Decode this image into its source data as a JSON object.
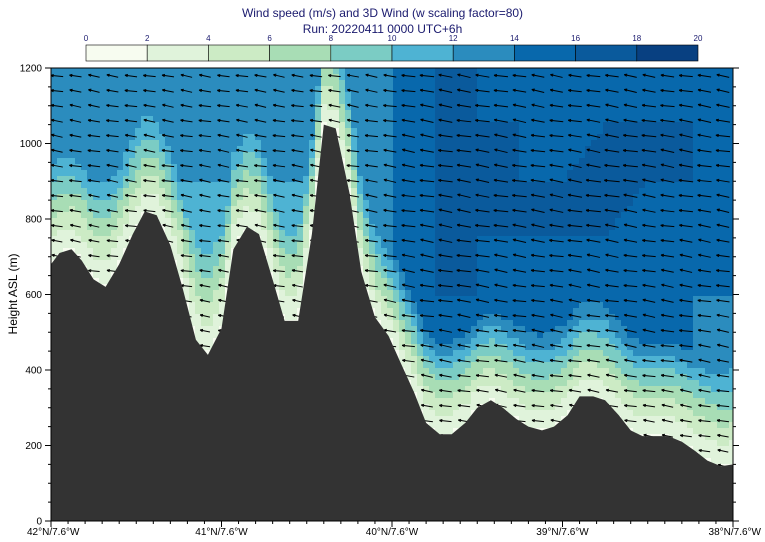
{
  "chart_data": {
    "type": "heatmap",
    "title": "Wind speed (m/s) and 3D Wind (w scaling factor=80)",
    "subtitle": "Run: 20220411 0000 UTC+6h",
    "ylabel": "Height ASL (m)",
    "xlabel": "",
    "ylim": [
      0,
      1200
    ],
    "y_ticks": [
      0,
      200,
      400,
      600,
      800,
      1000,
      1200
    ],
    "x_ticks": [
      "42°N/7.6°W",
      "41°N/7.6°W",
      "40°N/7.6°W",
      "39°N/7.6°W",
      "38°N/7.6°W"
    ],
    "colorbar": {
      "labels": [
        0,
        2,
        4,
        6,
        8,
        10,
        12,
        14,
        16,
        18,
        20
      ],
      "colors": [
        "#f7fcf0",
        "#e0f3db",
        "#ccebc5",
        "#a8ddb5",
        "#7bccc4",
        "#4eb3d3",
        "#2b8cbe",
        "#0868ac",
        "#0a5a9c",
        "#084081"
      ]
    },
    "terrain": {
      "color": "#333333",
      "latitude": [
        42.0,
        41.95,
        41.88,
        41.82,
        41.75,
        41.68,
        41.6,
        41.52,
        41.45,
        41.38,
        41.3,
        41.23,
        41.15,
        41.08,
        41.0,
        40.93,
        40.85,
        40.78,
        40.7,
        40.63,
        40.55,
        40.47,
        40.4,
        40.33,
        40.25,
        40.18,
        40.1,
        40.02,
        39.95,
        39.87,
        39.8,
        39.72,
        39.65,
        39.57,
        39.5,
        39.42,
        39.35,
        39.27,
        39.2,
        39.12,
        39.05,
        38.97,
        38.9,
        38.82,
        38.75,
        38.67,
        38.6,
        38.53,
        38.45,
        38.38,
        38.3,
        38.22,
        38.15,
        38.07,
        38.0
      ],
      "height_m": [
        680,
        710,
        720,
        690,
        640,
        620,
        680,
        760,
        820,
        810,
        730,
        620,
        480,
        440,
        510,
        720,
        780,
        760,
        640,
        530,
        530,
        760,
        1050,
        1040,
        870,
        660,
        540,
        490,
        420,
        340,
        260,
        230,
        230,
        260,
        300,
        320,
        300,
        270,
        250,
        240,
        250,
        280,
        330,
        330,
        320,
        280,
        240,
        225,
        225,
        225,
        210,
        185,
        160,
        145,
        150
      ]
    },
    "wind_speed_field": {
      "description_units": "m/s",
      "levels_m": [
        0,
        150,
        300,
        450,
        600,
        750,
        900,
        1050,
        1200
      ],
      "latitude": [
        42.0,
        41.75,
        41.5,
        41.25,
        41.0,
        40.75,
        40.5,
        40.25,
        40.0,
        39.75,
        39.5,
        39.25,
        39.0,
        38.75,
        38.5,
        38.25,
        38.0
      ],
      "values": [
        [
          6,
          6,
          6,
          6,
          6,
          6,
          6,
          8,
          8,
          8,
          8,
          8,
          8,
          8,
          8,
          8,
          8
        ],
        [
          6,
          6,
          6,
          6,
          6,
          6,
          6,
          8,
          8,
          10,
          10,
          10,
          10,
          10,
          10,
          10,
          10
        ],
        [
          6,
          6,
          6,
          6,
          6,
          6,
          6,
          8,
          10,
          12,
          12,
          12,
          12,
          12,
          12,
          12,
          12
        ],
        [
          8,
          8,
          8,
          8,
          8,
          8,
          8,
          10,
          12,
          14,
          14,
          14,
          14,
          14,
          14,
          14,
          12
        ],
        [
          10,
          10,
          10,
          10,
          10,
          10,
          10,
          12,
          14,
          16,
          16,
          14,
          14,
          14,
          14,
          14,
          14
        ],
        [
          10,
          10,
          10,
          10,
          10,
          12,
          10,
          12,
          14,
          16,
          16,
          16,
          16,
          16,
          14,
          14,
          14
        ],
        [
          12,
          12,
          12,
          12,
          12,
          12,
          12,
          12,
          14,
          16,
          16,
          16,
          16,
          18,
          16,
          16,
          14
        ],
        [
          12,
          12,
          12,
          12,
          12,
          12,
          12,
          12,
          14,
          16,
          16,
          16,
          14,
          16,
          16,
          16,
          16
        ],
        [
          12,
          12,
          12,
          12,
          12,
          12,
          12,
          12,
          14,
          16,
          16,
          14,
          14,
          14,
          14,
          14,
          14
        ]
      ]
    }
  }
}
